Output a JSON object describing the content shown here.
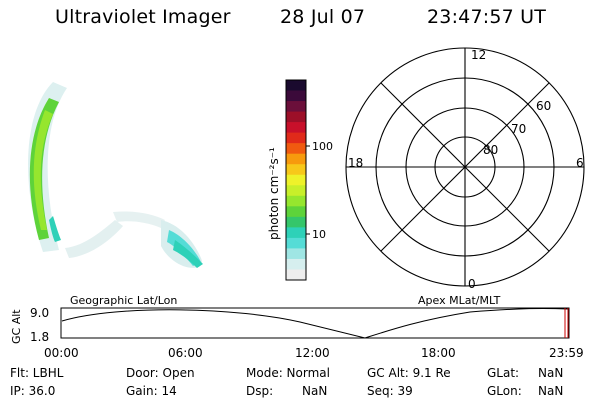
{
  "header": {
    "instrument": "Ultraviolet Imager",
    "date": "28 Jul 07",
    "time": "23:47:57 UT"
  },
  "colorbar": {
    "label": "photon cm⁻²s⁻¹",
    "ticks": [
      "100",
      "10"
    ],
    "colors": [
      "#1a0a2e",
      "#3b0a3a",
      "#6b0f3a",
      "#9c0f28",
      "#c8102a",
      "#e02a1a",
      "#f05a10",
      "#f79a0d",
      "#f7c81a",
      "#eef22a",
      "#c8ef2a",
      "#96e62e",
      "#5ed33a",
      "#35c66a",
      "#2ed1b8",
      "#55dcd6",
      "#9fe6e4",
      "#d6efef",
      "#eeeeee"
    ]
  },
  "polar_plot": {
    "mlt_labels": [
      "12",
      "18",
      "6",
      "0"
    ],
    "lat_labels": [
      "60",
      "70",
      "80"
    ]
  },
  "timeline": {
    "ylabel": "GC Alt",
    "y_ticks": [
      "9.0",
      "1.8"
    ],
    "left_title": "Geographic Lat/Lon",
    "right_title": "Apex  MLat/MLT",
    "x_ticks": [
      "00:00",
      "06:00",
      "12:00",
      "18:00",
      "23:59"
    ]
  },
  "status": {
    "row1": [
      "Flt: LBHL",
      "Door: Open",
      "Mode: Normal",
      "GC Alt: 9.1 Re",
      "GLat:",
      "NaN"
    ],
    "row2": [
      "IP: 36.0",
      "Gain: 14",
      "Dsp:",
      "NaN",
      "Seq: 39",
      "GLon:",
      "NaN"
    ]
  }
}
